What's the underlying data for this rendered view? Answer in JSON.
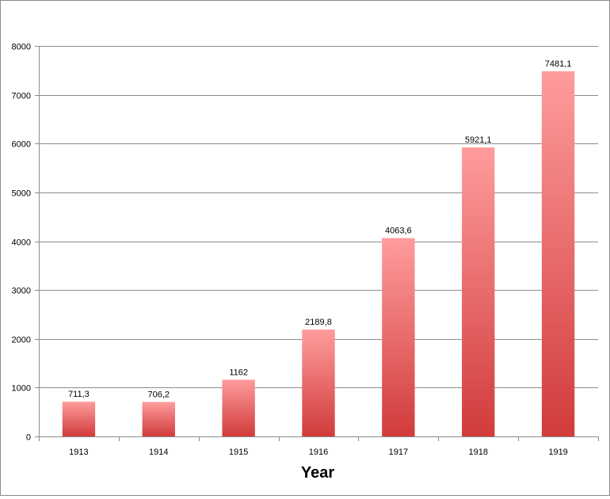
{
  "chart_data": {
    "type": "bar",
    "title": "",
    "xlabel": "Year",
    "ylabel": "",
    "categories": [
      "1913",
      "1914",
      "1915",
      "1916",
      "1917",
      "1918",
      "1919"
    ],
    "values": [
      711.3,
      706.2,
      1162,
      2189.8,
      4063.6,
      5921.1,
      7481.1
    ],
    "data_labels": [
      "711,3",
      "706,2",
      "1162",
      "2189,8",
      "4063,6",
      "5921,1",
      "7481,1"
    ],
    "ylim": [
      0,
      8000
    ],
    "yticks": [
      0,
      1000,
      2000,
      3000,
      4000,
      5000,
      6000,
      7000,
      8000
    ],
    "grid": true,
    "legend": "none",
    "bar_color_top": "#ff9c9c",
    "bar_color_bottom": "#d13b3b"
  }
}
